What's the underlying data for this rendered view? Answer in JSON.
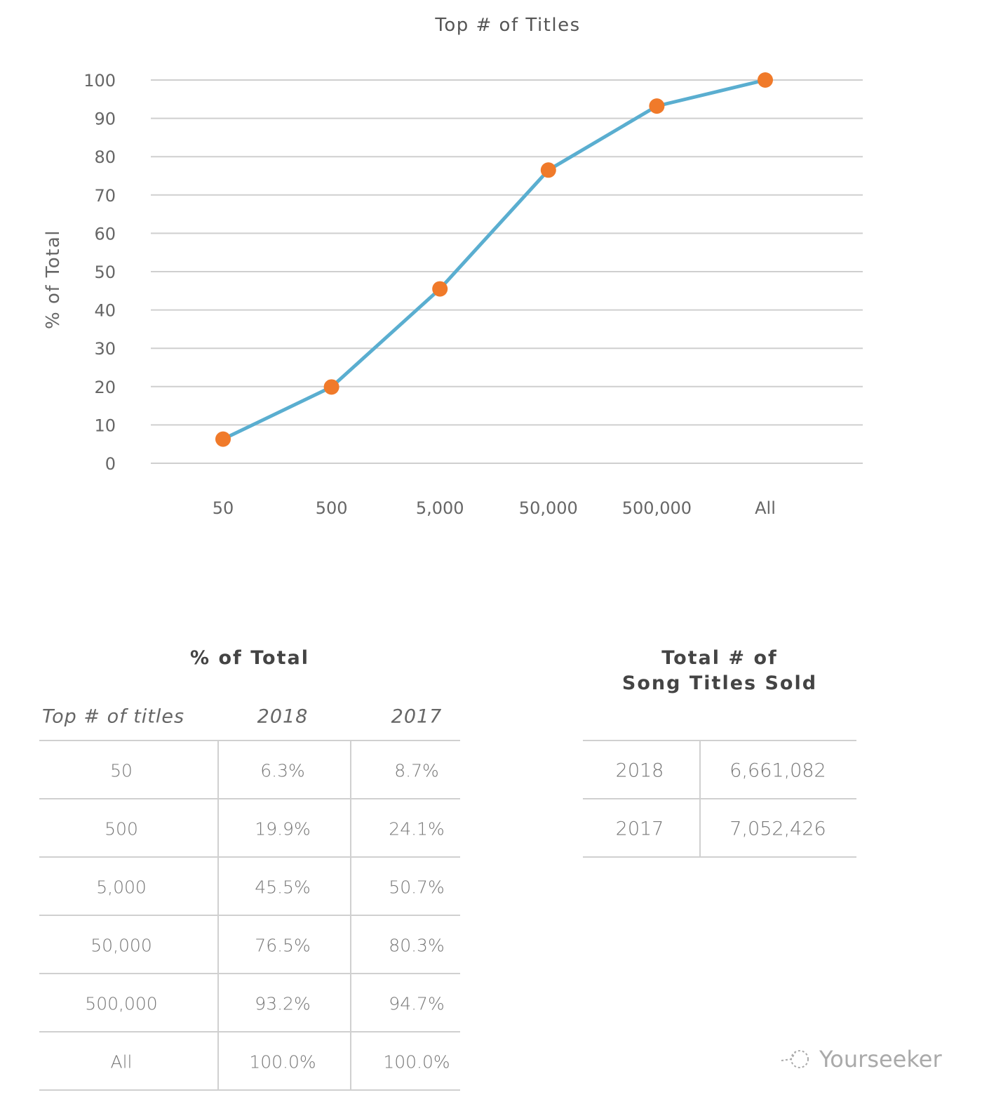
{
  "chart_data": {
    "type": "line",
    "title": "Top # of Titles",
    "ylabel": "% of Total",
    "xlabel": "",
    "categories": [
      "50",
      "500",
      "5,000",
      "50,000",
      "500,000",
      "All"
    ],
    "values": [
      6.3,
      19.9,
      45.5,
      76.5,
      93.2,
      100.0
    ],
    "yticks": [
      "0",
      "10",
      "20",
      "30",
      "40",
      "50",
      "60",
      "70",
      "80",
      "90",
      "100"
    ],
    "ylim": [
      0,
      100
    ],
    "grid": true,
    "line_color": "#5aaed0",
    "marker_color": "#f07a2a"
  },
  "percent_table": {
    "title": "% of Total",
    "headers": [
      "Top # of titles",
      "2018",
      "2017"
    ],
    "rows": [
      [
        "50",
        "6.3%",
        "8.7%"
      ],
      [
        "500",
        "19.9%",
        "24.1%"
      ],
      [
        "5,000",
        "45.5%",
        "50.7%"
      ],
      [
        "50,000",
        "76.5%",
        "80.3%"
      ],
      [
        "500,000",
        "93.2%",
        "94.7%"
      ],
      [
        "All",
        "100.0%",
        "100.0%"
      ]
    ]
  },
  "totals_table": {
    "title_line1": "Total # of",
    "title_line2": "Song Titles Sold",
    "rows": [
      [
        "2018",
        "6,661,082"
      ],
      [
        "2017",
        "7,052,426"
      ]
    ]
  },
  "watermark": "Yourseeker"
}
